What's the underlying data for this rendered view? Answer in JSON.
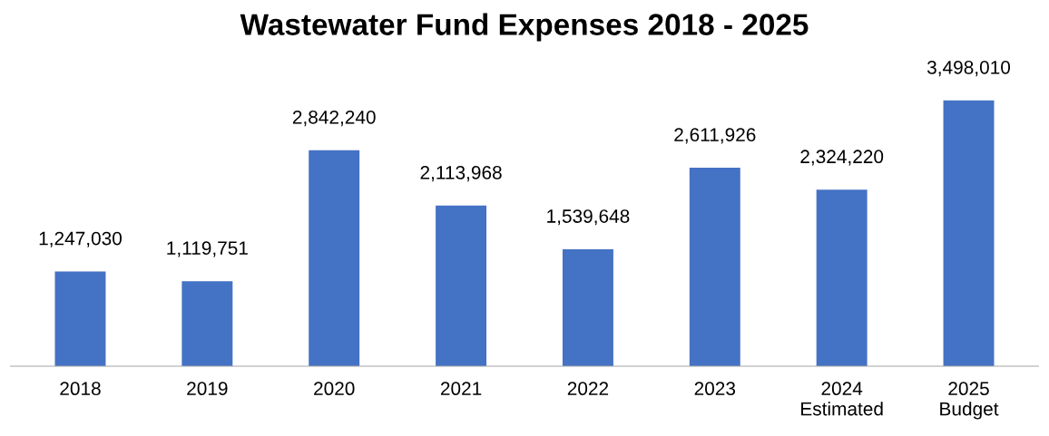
{
  "chart_data": {
    "type": "bar",
    "title": "Wastewater Fund Expenses 2018 - 2025",
    "categories": [
      "2018",
      "2019",
      "2020",
      "2021",
      "2022",
      "2023",
      "2024\nEstimated",
      "2025\nBudget"
    ],
    "values": [
      1247030,
      1119751,
      2842240,
      2113968,
      1539648,
      2611926,
      2324220,
      3498010
    ],
    "value_labels": [
      "1,247,030",
      "1,119,751",
      "2,842,240",
      "2,113,968",
      "1,539,648",
      "2,611,926",
      "2,324,220",
      "3,498,010"
    ],
    "color": "#4472c4",
    "grid": false,
    "legend": false
  }
}
